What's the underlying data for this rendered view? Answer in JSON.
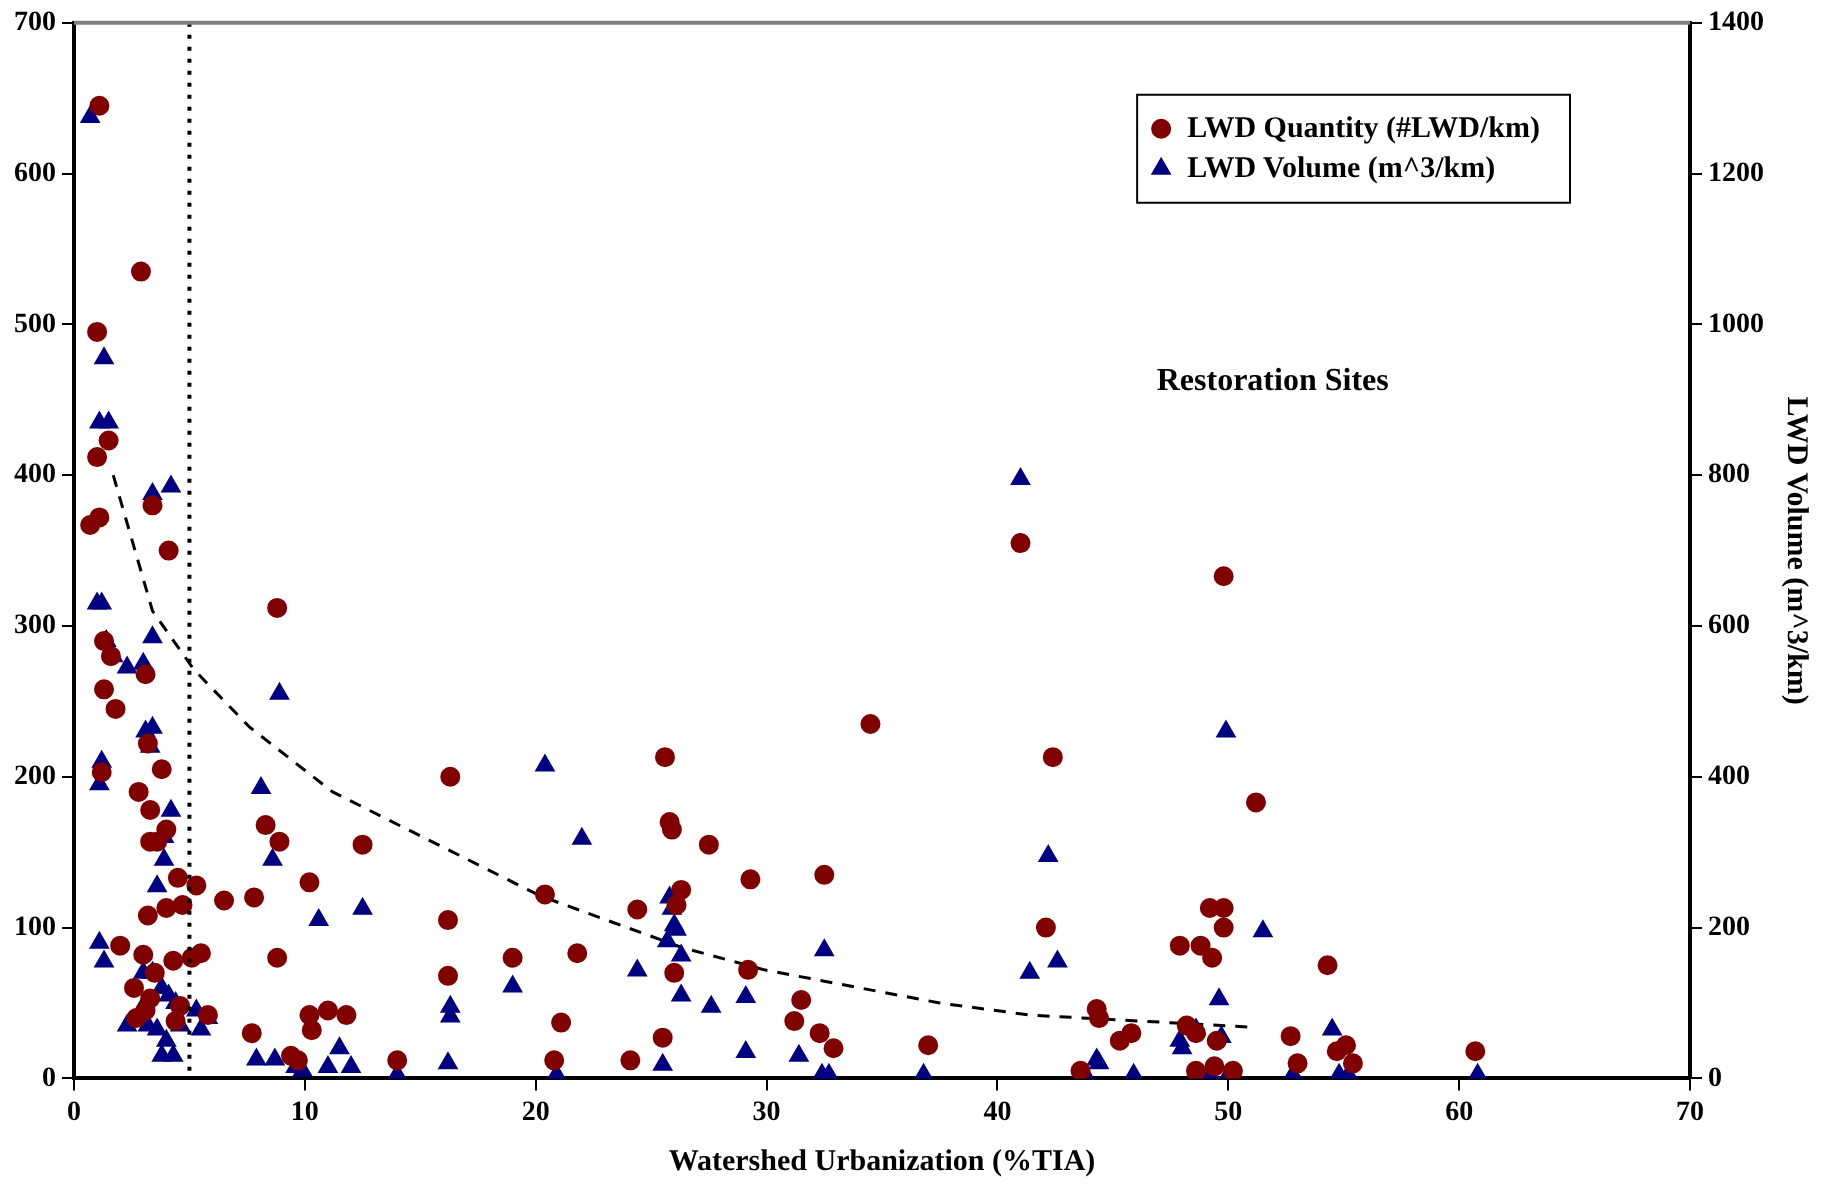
{
  "chart_data": {
    "type": "scatter",
    "xlabel": "Watershed Urbanization (%TIA)",
    "y2label": "LWD Volume (m^3/km)",
    "xlim": [
      0,
      70
    ],
    "xticks": [
      0,
      10,
      20,
      30,
      40,
      50,
      60,
      70
    ],
    "ylim": [
      0,
      700
    ],
    "yticks": [
      0,
      100,
      200,
      300,
      400,
      500,
      600,
      700
    ],
    "y2lim": [
      0,
      1400
    ],
    "y2ticks": [
      0,
      200,
      400,
      600,
      800,
      1000,
      1200,
      1400
    ],
    "grid": false,
    "legend": "top right",
    "ref_lines": [
      {
        "axis": "x",
        "value": 5,
        "line_style": "dotted",
        "color": "#000000"
      }
    ],
    "annotations": [
      "Restoration Sites"
    ],
    "series": [
      {
        "name": "LWD Quantity (#LWD/km)",
        "color": "#800000",
        "marker": "circle",
        "x": [
          1.1,
          1.0,
          2.9,
          0.7,
          1.1,
          1.0,
          1.5,
          3.4,
          4.1,
          1.3,
          1.6,
          1.3,
          1.8,
          3.1,
          3.2,
          3.8,
          3.3,
          4.0,
          2.8,
          3.3,
          3.6,
          4.5,
          4.7,
          4.0,
          5.3,
          6.5,
          7.8,
          8.3,
          8.8,
          8.9,
          8.8,
          1.2,
          2.0,
          3.2,
          3.0,
          3.5,
          4.3,
          5.1,
          5.5,
          2.6,
          3.3,
          4.6,
          2.7,
          3.1,
          4.4,
          5.8,
          7.7,
          9.4,
          9.7,
          10.2,
          10.3,
          10.2,
          11.0,
          11.8,
          12.5,
          14.0,
          16.3,
          16.2,
          16.2,
          19.0,
          20.4,
          21.1,
          21.8,
          20.8,
          24.1,
          24.4,
          25.6,
          25.8,
          25.9,
          26.3,
          26.1,
          27.5,
          25.5,
          26.0,
          29.3,
          29.2,
          31.2,
          31.5,
          32.5,
          32.3,
          32.9,
          34.5,
          37.0,
          41.0,
          42.4,
          42.1,
          44.3,
          44.4,
          43.6,
          45.3,
          45.8,
          47.9,
          48.8,
          49.3,
          49.2,
          49.8,
          49.8,
          49.8,
          51.2,
          48.2,
          48.6,
          49.5,
          48.6,
          49.4,
          50.2,
          52.7,
          53.0,
          54.3,
          54.7,
          55.1,
          55.4,
          60.7
        ],
        "values": [
          645,
          495,
          535,
          367,
          372,
          412,
          423,
          380,
          350,
          290,
          280,
          258,
          245,
          268,
          222,
          205,
          178,
          165,
          190,
          157,
          157,
          133,
          115,
          113,
          128,
          118,
          120,
          168,
          312,
          157,
          80,
          203,
          88,
          108,
          82,
          70,
          78,
          80,
          83,
          60,
          53,
          48,
          40,
          45,
          38,
          42,
          30,
          15,
          12,
          42,
          32,
          130,
          45,
          42,
          155,
          12,
          200,
          105,
          68,
          80,
          122,
          37,
          83,
          12,
          12,
          112,
          213,
          170,
          165,
          125,
          115,
          155,
          27,
          70,
          132,
          72,
          38,
          52,
          135,
          30,
          20,
          235,
          22,
          355,
          213,
          100,
          46,
          40,
          5,
          25,
          30,
          88,
          88,
          80,
          113,
          113,
          100,
          333,
          183,
          35,
          30,
          25,
          5,
          8,
          5,
          28,
          10,
          75,
          18,
          22,
          10,
          18
        ]
      },
      {
        "name": "LWD Volume (m^3/km)",
        "color": "#000080",
        "marker": "triangle",
        "axis": "y2",
        "x": [
          0.7,
          1.3,
          1.1,
          1.5,
          3.4,
          4.2,
          1.0,
          1.2,
          1.4,
          1.7,
          3.0,
          3.4,
          2.3,
          3.1,
          3.4,
          3.3,
          4.2,
          3.9,
          3.6,
          3.9,
          1.2,
          1.1,
          8.9,
          8.1,
          8.6,
          1.1,
          1.3,
          3.0,
          3.4,
          3.8,
          4.1,
          4.4,
          3.2,
          2.3,
          2.9,
          3.6,
          4.6,
          4.0,
          5.3,
          5.8,
          5.5,
          4.3,
          3.8,
          7.9,
          8.7,
          9.6,
          9.9,
          10.6,
          11.0,
          11.5,
          12.5,
          12.0,
          14.0,
          16.3,
          16.3,
          16.2,
          19.0,
          20.4,
          20.9,
          22.0,
          24.4,
          25.5,
          25.8,
          25.9,
          25.7,
          26.1,
          26.0,
          26.3,
          26.3,
          27.6,
          29.1,
          29.1,
          31.4,
          32.5,
          32.7,
          32.4,
          36.8,
          41.0,
          41.4,
          42.2,
          42.6,
          44.3,
          44.4,
          43.8,
          45.9,
          47.9,
          48.6,
          48.0,
          49.6,
          49.9,
          49.7,
          51.5,
          48.8,
          49.2,
          50.0,
          52.8,
          54.5,
          54.8,
          55.2,
          60.8
        ],
        "values": [
          1275,
          955,
          870,
          870,
          775,
          785,
          630,
          630,
          580,
          560,
          550,
          585,
          545,
          460,
          465,
          440,
          355,
          320,
          255,
          290,
          420,
          390,
          510,
          385,
          290,
          180,
          155,
          140,
          140,
          120,
          110,
          100,
          70,
          70,
          90,
          65,
          70,
          50,
          90,
          80,
          65,
          30,
          30,
          25,
          25,
          15,
          10,
          210,
          15,
          40,
          225,
          15,
          5,
          95,
          82,
          20,
          122,
          415,
          5,
          318,
          143,
          18,
          240,
          225,
          182,
          197,
          203,
          163,
          110,
          95,
          108,
          35,
          30,
          170,
          5,
          5,
          5,
          795,
          140,
          295,
          155,
          25,
          20,
          5,
          5,
          50,
          65,
          40,
          105,
          460,
          55,
          195,
          5,
          5,
          5,
          5,
          65,
          5,
          5,
          5
        ]
      },
      {
        "type": "line",
        "color": "#000000",
        "line_style": "dashed",
        "marker": "none",
        "x": [
          1.7,
          3.4,
          5.2,
          7.6,
          11.2,
          20.2,
          26.3,
          29.9,
          37.5,
          41.4,
          51
        ],
        "values": [
          400,
          310,
          271,
          233,
          190,
          121,
          87,
          72,
          50,
          42,
          34
        ]
      }
    ]
  }
}
